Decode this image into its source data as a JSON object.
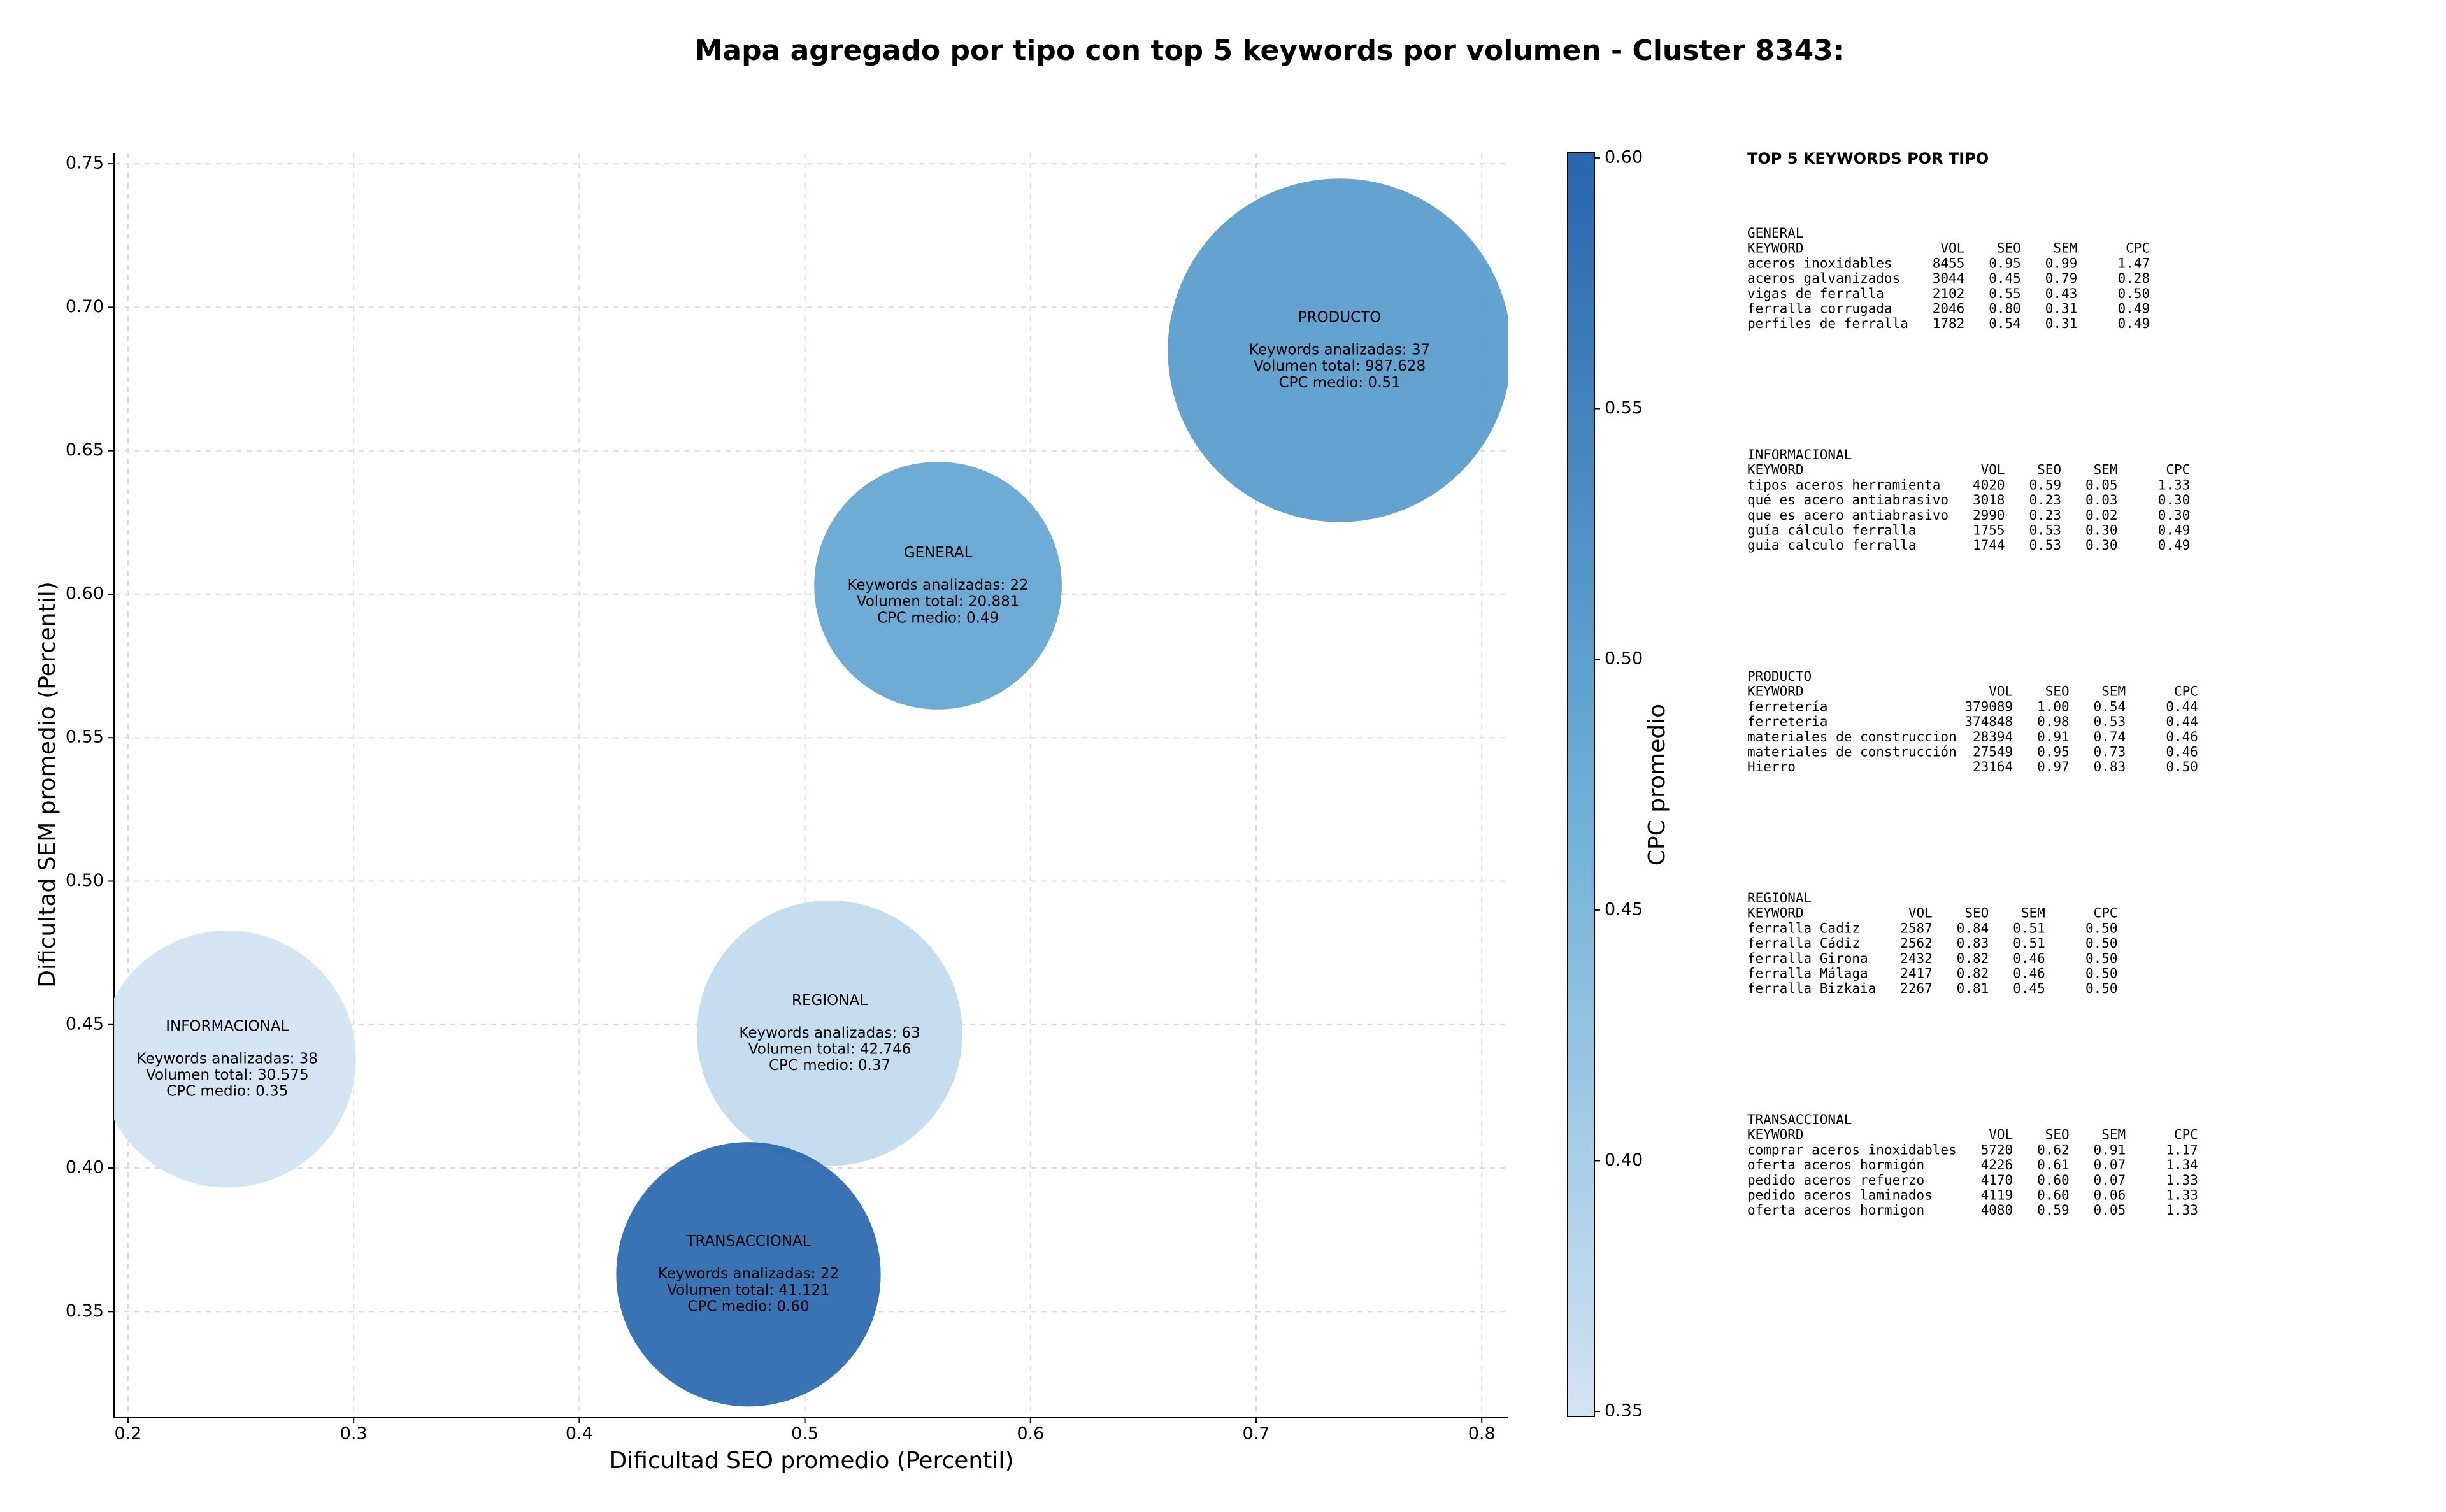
{
  "chart_data": {
    "type": "bubble",
    "title": "Mapa agregado por tipo con top 5 keywords por volumen - Cluster 8343:",
    "x_label": "Dificultad SEO promedio (Percentil)",
    "y_label": "Dificultad SEM promedio (Percentil)",
    "colorbar_label": "CPC promedio",
    "xlim": [
      0.1938,
      0.8118
    ],
    "ylim": [
      0.313,
      0.7538
    ],
    "xticks": [
      0.2,
      0.3,
      0.4,
      0.5,
      0.6,
      0.7,
      0.8
    ],
    "yticks": [
      0.35,
      {
        "value": 0.4,
        "label": "0.40"
      },
      0.45,
      {
        "value": 0.5,
        "label": "0.50"
      },
      0.55,
      {
        "value": 0.6,
        "label": "0.60"
      },
      0.65,
      {
        "value": 0.7,
        "label": "0.70"
      },
      0.75
    ],
    "clim": [
      0.349,
      0.601
    ],
    "cticks": [
      0.35,
      {
        "value": 0.4,
        "label": "0.40"
      },
      0.45,
      {
        "value": 0.5,
        "label": "0.50"
      },
      0.55,
      {
        "value": 0.6,
        "label": "0.60"
      }
    ],
    "colorscale": [
      "#d3e3f3",
      "#6aaed6",
      "#2766ad"
    ],
    "grid": true,
    "points": [
      {
        "name": "INFORMACIONAL",
        "x": 0.244,
        "y": 0.438,
        "volume": 30575,
        "cpc": 0.35,
        "lines": [
          "Keywords analizadas: 38",
          "Volumen total: 30.575",
          "CPC medio: 0.35"
        ]
      },
      {
        "name": "REGIONAL",
        "x": 0.511,
        "y": 0.447,
        "volume": 42746,
        "cpc": 0.37,
        "lines": [
          "Keywords analizadas: 63",
          "Volumen total: 42.746",
          "CPC medio: 0.37"
        ]
      },
      {
        "name": "GENERAL",
        "x": 0.559,
        "y": 0.603,
        "volume": 20881,
        "cpc": 0.49,
        "lines": [
          "Keywords analizadas: 22",
          "Volumen total: 20.881",
          "CPC medio: 0.49"
        ]
      },
      {
        "name": "PRODUCTO",
        "x": 0.737,
        "y": 0.685,
        "volume": 987628,
        "cpc": 0.51,
        "lines": [
          "Keywords analizadas: 37",
          "Volumen total: 987.628",
          "CPC medio: 0.51"
        ]
      },
      {
        "name": "TRANSACCIONAL",
        "x": 0.475,
        "y": 0.363,
        "volume": 41121,
        "cpc": 0.6,
        "lines": [
          "Keywords analizadas: 22",
          "Volumen total: 41.121",
          "CPC medio: 0.60"
        ]
      }
    ]
  },
  "panel": {
    "heading": "TOP 5 KEYWORDS POR TIPO",
    "tables": [
      {
        "name": "GENERAL",
        "columns": [
          "KEYWORD",
          "VOL",
          "SEO",
          "SEM",
          "CPC"
        ],
        "rows": [
          [
            "aceros inoxidables",
            "8455",
            "0.95",
            "0.99",
            "1.47"
          ],
          [
            "aceros galvanizados",
            "3044",
            "0.45",
            "0.79",
            "0.28"
          ],
          [
            "vigas de ferralla",
            "2102",
            "0.55",
            "0.43",
            "0.50"
          ],
          [
            "ferralla corrugada",
            "2046",
            "0.80",
            "0.31",
            "0.49"
          ],
          [
            "perfiles de ferralla",
            "1782",
            "0.54",
            "0.31",
            "0.49"
          ]
        ]
      },
      {
        "name": "INFORMACIONAL",
        "columns": [
          "KEYWORD",
          "VOL",
          "SEO",
          "SEM",
          "CPC"
        ],
        "rows": [
          [
            "tipos aceros herramienta",
            "4020",
            "0.59",
            "0.05",
            "1.33"
          ],
          [
            "qué es acero antiabrasivo",
            "3018",
            "0.23",
            "0.03",
            "0.30"
          ],
          [
            "que es acero antiabrasivo",
            "2990",
            "0.23",
            "0.02",
            "0.30"
          ],
          [
            "guía cálculo ferralla",
            "1755",
            "0.53",
            "0.30",
            "0.49"
          ],
          [
            "guia calculo ferralla",
            "1744",
            "0.53",
            "0.30",
            "0.49"
          ]
        ]
      },
      {
        "name": "PRODUCTO",
        "columns": [
          "KEYWORD",
          "VOL",
          "SEO",
          "SEM",
          "CPC"
        ],
        "rows": [
          [
            "ferretería",
            "379089",
            "1.00",
            "0.54",
            "0.44"
          ],
          [
            "ferreteria",
            "374848",
            "0.98",
            "0.53",
            "0.44"
          ],
          [
            "materiales de construccion",
            "28394",
            "0.91",
            "0.74",
            "0.46"
          ],
          [
            "materiales de construcción",
            "27549",
            "0.95",
            "0.73",
            "0.46"
          ],
          [
            "Hierro",
            "23164",
            "0.97",
            "0.83",
            "0.50"
          ]
        ]
      },
      {
        "name": "REGIONAL",
        "columns": [
          "KEYWORD",
          "VOL",
          "SEO",
          "SEM",
          "CPC"
        ],
        "rows": [
          [
            "ferralla Cadiz",
            "2587",
            "0.84",
            "0.51",
            "0.50"
          ],
          [
            "ferralla Cádiz",
            "2562",
            "0.83",
            "0.51",
            "0.50"
          ],
          [
            "ferralla Girona",
            "2432",
            "0.82",
            "0.46",
            "0.50"
          ],
          [
            "ferralla Málaga",
            "2417",
            "0.82",
            "0.46",
            "0.50"
          ],
          [
            "ferralla Bizkaia",
            "2267",
            "0.81",
            "0.45",
            "0.50"
          ]
        ]
      },
      {
        "name": "TRANSACCIONAL",
        "columns": [
          "KEYWORD",
          "VOL",
          "SEO",
          "SEM",
          "CPC"
        ],
        "rows": [
          [
            "comprar aceros inoxidables",
            "5720",
            "0.62",
            "0.91",
            "1.17"
          ],
          [
            "oferta aceros hormigón",
            "4226",
            "0.61",
            "0.07",
            "1.34"
          ],
          [
            "pedido aceros refuerzo",
            "4170",
            "0.60",
            "0.07",
            "1.33"
          ],
          [
            "pedido aceros laminados",
            "4119",
            "0.60",
            "0.06",
            "1.33"
          ],
          [
            "oferta aceros hormigon",
            "4080",
            "0.59",
            "0.05",
            "1.33"
          ]
        ]
      }
    ]
  }
}
